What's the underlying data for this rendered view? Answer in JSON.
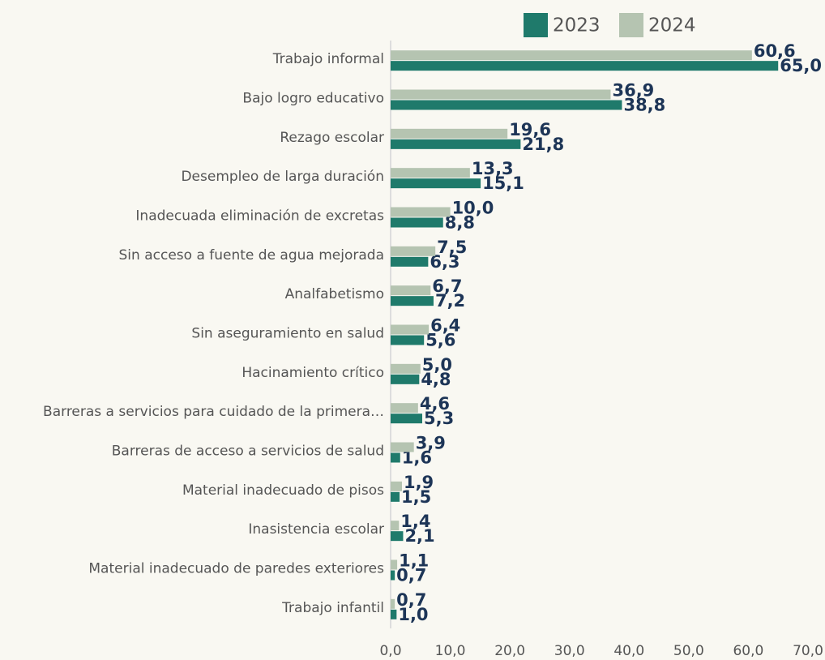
{
  "chart_data": {
    "type": "barh",
    "categories": [
      "Trabajo informal",
      "Bajo logro educativo",
      "Rezago escolar",
      "Desempleo de larga duración",
      "Inadecuada eliminación de excretas",
      "Sin acceso a fuente de agua mejorada",
      "Analfabetismo",
      "Sin aseguramiento en salud",
      "Hacinamiento crítico",
      "Barreras a servicios para cuidado de la primera…",
      "Barreras de acceso a servicios de salud",
      "Material inadecuado de pisos",
      "Inasistencia escolar",
      "Material inadecuado de paredes exteriores",
      "Trabajo infantil"
    ],
    "series": [
      {
        "name": "2023",
        "color": "#1f7a6b",
        "values": [
          65.0,
          38.8,
          21.8,
          15.1,
          8.8,
          6.3,
          7.2,
          5.6,
          4.8,
          5.3,
          1.6,
          1.5,
          2.1,
          0.7,
          1.0
        ],
        "value_labels": [
          "65,0",
          "38,8",
          "21,8",
          "15,1",
          "8,8",
          "6,3",
          "7,2",
          "5,6",
          "4,8",
          "5,3",
          "1,6",
          "1,5",
          "2,1",
          "0,7",
          "1,0"
        ]
      },
      {
        "name": "2024",
        "color": "#b5c4b1",
        "values": [
          60.6,
          36.9,
          19.6,
          13.3,
          10.0,
          7.5,
          6.7,
          6.4,
          5.0,
          4.6,
          3.9,
          1.9,
          1.4,
          1.1,
          0.7
        ],
        "value_labels": [
          "60,6",
          "36,9",
          "19,6",
          "13,3",
          "10,0",
          "7,5",
          "6,7",
          "6,4",
          "5,0",
          "4,6",
          "3,9",
          "1,9",
          "1,4",
          "1,1",
          "0,7"
        ]
      }
    ],
    "xlim": [
      0,
      70
    ],
    "xticks": [
      {
        "value": 0,
        "label": "0,0"
      },
      {
        "value": 10,
        "label": "10,0"
      },
      {
        "value": 20,
        "label": "20,0"
      },
      {
        "value": 30,
        "label": "30,0"
      },
      {
        "value": 40,
        "label": "40,0"
      },
      {
        "value": 50,
        "label": "50,0"
      },
      {
        "value": 60,
        "label": "60,0"
      },
      {
        "value": 70,
        "label": "70,0"
      }
    ],
    "grid": false,
    "legend": "top"
  }
}
